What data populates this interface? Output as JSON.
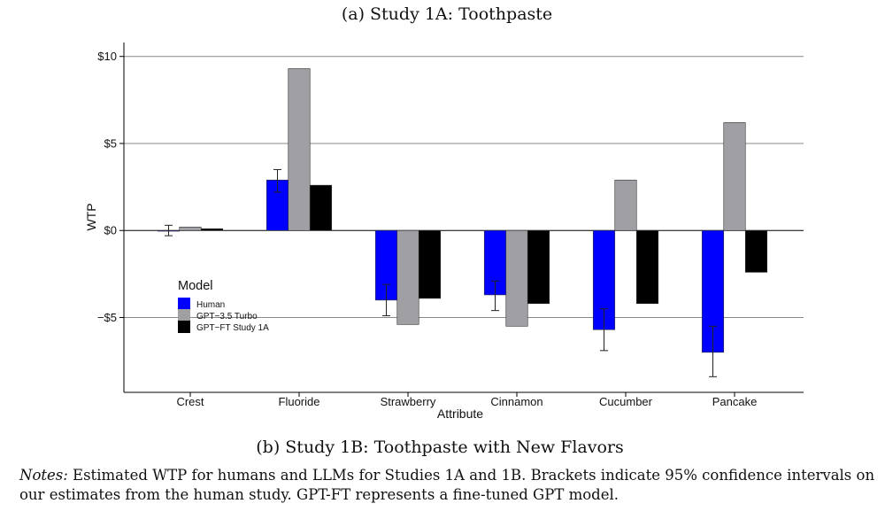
{
  "figure_title": "(a) Study 1A: Toothpaste",
  "figure_caption": "(b) Study 1B: Toothpaste with New Flavors",
  "notes": {
    "label": "Notes:",
    "text": "Estimated WTP for humans and LLMs for Studies 1A and 1B. Brackets indicate 95% confidence intervals on our estimates from the human study. GPT-FT represents a fine-tuned GPT model."
  },
  "colors": {
    "human": "#0000ff",
    "gpt35": "#a0a0a4",
    "gptft": "#000000"
  },
  "chart_data": {
    "type": "bar",
    "title": "",
    "xlabel": "Attribute",
    "ylabel": "WTP",
    "ylim": [
      -9.3,
      10.8
    ],
    "yticks": [
      10,
      5,
      0,
      -5
    ],
    "ytick_labels": [
      "$10",
      "$5",
      "$0",
      "−$5"
    ],
    "grid": "horizontal",
    "categories": [
      "Crest",
      "Fluoride",
      "Strawberry",
      "Cinnamon",
      "Cucumber",
      "Pancake"
    ],
    "legend": {
      "title": "Model",
      "placement": "left",
      "entries": [
        "Human",
        "GPT−3.5 Turbo",
        "GPT−FT Study 1A"
      ]
    },
    "series": [
      {
        "name": "Human",
        "values": [
          0.0,
          2.9,
          -4.0,
          -3.7,
          -5.7,
          -7.0
        ],
        "ci_low": [
          -0.3,
          2.2,
          -4.9,
          -4.6,
          -6.9,
          -8.4
        ],
        "ci_high": [
          0.3,
          3.5,
          -3.1,
          -2.9,
          -4.5,
          -5.5
        ]
      },
      {
        "name": "GPT−3.5 Turbo",
        "values": [
          0.2,
          9.3,
          -5.4,
          -5.5,
          2.9,
          6.2
        ]
      },
      {
        "name": "GPT−FT Study 1A",
        "values": [
          0.1,
          2.6,
          -3.9,
          -4.2,
          -4.2,
          -2.4
        ]
      }
    ]
  }
}
